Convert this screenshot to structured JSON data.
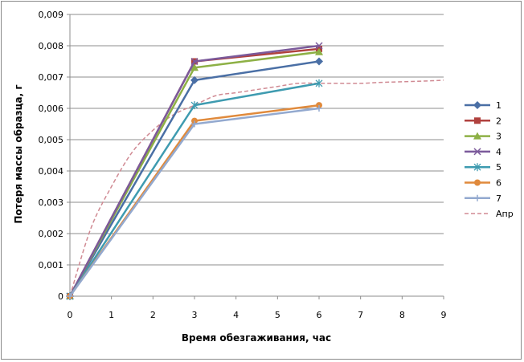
{
  "chart_data": {
    "type": "line",
    "title": "",
    "xlabel": "Время обезгаживания, час",
    "ylabel": "Потеря массы образца, г",
    "xlim": [
      0,
      9
    ],
    "ylim": [
      0,
      0.009
    ],
    "x_ticks": [
      "0",
      "1",
      "2",
      "3",
      "4",
      "5",
      "6",
      "7",
      "8",
      "9"
    ],
    "y_ticks": [
      "0",
      "0,001",
      "0,002",
      "0,003",
      "0,004",
      "0,005",
      "0,006",
      "0,007",
      "0,008",
      "0,009"
    ],
    "grid": "horizontal",
    "legend_position": "right",
    "x": [
      0,
      3,
      6
    ],
    "series": [
      {
        "name": "1",
        "values": [
          0,
          0.0069,
          0.0075
        ],
        "color": "#4a6fa5",
        "marker": "diamond"
      },
      {
        "name": "2",
        "values": [
          0,
          0.0075,
          0.0079
        ],
        "color": "#b0413e",
        "marker": "square"
      },
      {
        "name": "3",
        "values": [
          0,
          0.0073,
          0.0078
        ],
        "color": "#8db045",
        "marker": "triangle"
      },
      {
        "name": "4",
        "values": [
          0,
          0.0075,
          0.008
        ],
        "color": "#7b5a9b",
        "marker": "x"
      },
      {
        "name": "5",
        "values": [
          0,
          0.0061,
          0.0068
        ],
        "color": "#3e9bb0",
        "marker": "star"
      },
      {
        "name": "6",
        "values": [
          0,
          0.0056,
          0.0061
        ],
        "color": "#e08a3c",
        "marker": "circle"
      },
      {
        "name": "7",
        "values": [
          0,
          0.0055,
          0.006
        ],
        "color": "#93a9cf",
        "marker": "plus"
      }
    ],
    "approximation": {
      "name": "Апр",
      "color": "#d08a93",
      "style": "dashed",
      "x": [
        0,
        0.5,
        1,
        1.5,
        2,
        2.5,
        3,
        3.5,
        4,
        4.5,
        5,
        5.5,
        6,
        6.5,
        7,
        7.5,
        8,
        8.5,
        9
      ],
      "values": [
        0,
        0.00215,
        0.0035,
        0.0046,
        0.0053,
        0.0058,
        0.0061,
        0.0064,
        0.0065,
        0.0066,
        0.0067,
        0.0068,
        0.0068,
        0.0068,
        0.0068,
        0.00683,
        0.00685,
        0.00687,
        0.0069
      ]
    }
  }
}
